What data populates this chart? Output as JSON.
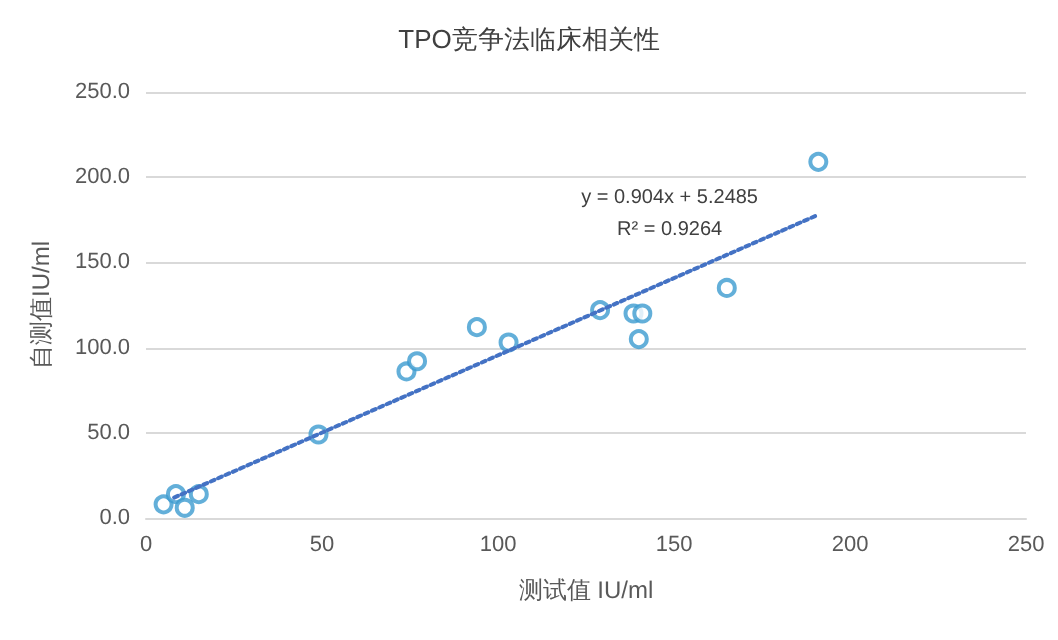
{
  "chart_data": {
    "type": "scatter",
    "title": "TPO竞争法临床相关性",
    "xlabel": "测试值 IU/ml",
    "ylabel": "自测值IU/ml",
    "annotations": [
      "y = 0.904x + 5.2485",
      "R² = 0.9264"
    ],
    "xlim": [
      0,
      250
    ],
    "xticks": [
      0,
      50,
      100,
      150,
      200,
      250
    ],
    "ylim": [
      0,
      250
    ],
    "yticks": [
      {
        "value": 0,
        "label": "0.0"
      },
      {
        "value": 50,
        "label": "50.0"
      },
      {
        "value": 100,
        "label": "100.0"
      },
      {
        "value": 150,
        "label": "150.0"
      },
      {
        "value": 200,
        "label": "200.0"
      },
      {
        "value": 250,
        "label": "250.0"
      }
    ],
    "grid": "y",
    "marker": "circle",
    "series": [
      {
        "color": "#3c9bd0",
        "x": [
          5,
          8.5,
          11,
          15,
          49,
          74,
          77,
          94,
          103,
          129,
          138.5,
          141,
          140,
          165,
          191
        ],
        "values": [
          8,
          14,
          6,
          14,
          49,
          86,
          92,
          112,
          103,
          122,
          120,
          120,
          105,
          135,
          209
        ]
      },
      {
        "type": "line",
        "color": "#4472c4",
        "marker": "none",
        "line_style": "dotted",
        "x": [
          8,
          191
        ],
        "values": [
          12,
          178
        ]
      }
    ]
  }
}
